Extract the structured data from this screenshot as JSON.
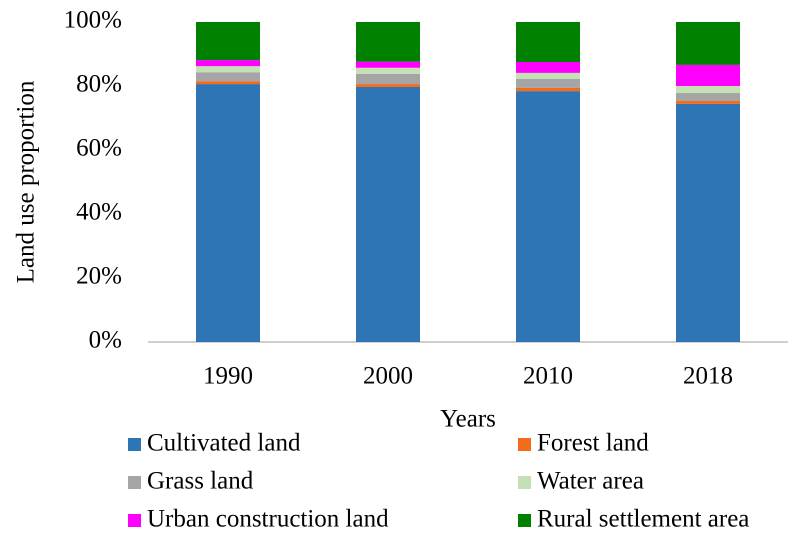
{
  "chart_data": {
    "type": "stacked_bar",
    "x_label": "Years",
    "y_label": "Land use proportion",
    "categories": [
      "1990",
      "2000",
      "2010",
      "2018"
    ],
    "series": [
      {
        "name": "Cultivated land",
        "color": "#2e75b6",
        "values": [
          80.6,
          79.7,
          78.4,
          74.4
        ]
      },
      {
        "name": "Forest land",
        "color": "#f46b1a",
        "values": [
          0.9,
          0.9,
          1.0,
          0.9
        ]
      },
      {
        "name": "Grass land",
        "color": "#a5a5a5",
        "values": [
          2.8,
          3.2,
          2.8,
          2.5
        ]
      },
      {
        "name": "Water area",
        "color": "#c5e0b4",
        "values": [
          1.9,
          1.9,
          1.9,
          2.2
        ]
      },
      {
        "name": "Urban construction land",
        "color": "#ff00ff",
        "values": [
          1.9,
          1.9,
          3.4,
          6.6
        ]
      },
      {
        "name": "Rural settlement area",
        "color": "#008000",
        "values": [
          11.9,
          12.4,
          12.5,
          13.4
        ]
      }
    ],
    "ylim": [
      0,
      100
    ],
    "yticks": [
      {
        "value": 0,
        "label": "0%"
      },
      {
        "value": 20,
        "label": "20%"
      },
      {
        "value": 40,
        "label": "40%"
      },
      {
        "value": 60,
        "label": "60%"
      },
      {
        "value": 80,
        "label": "80%"
      },
      {
        "value": 100,
        "label": "100%"
      }
    ],
    "grid": false,
    "legend": "bottom"
  }
}
